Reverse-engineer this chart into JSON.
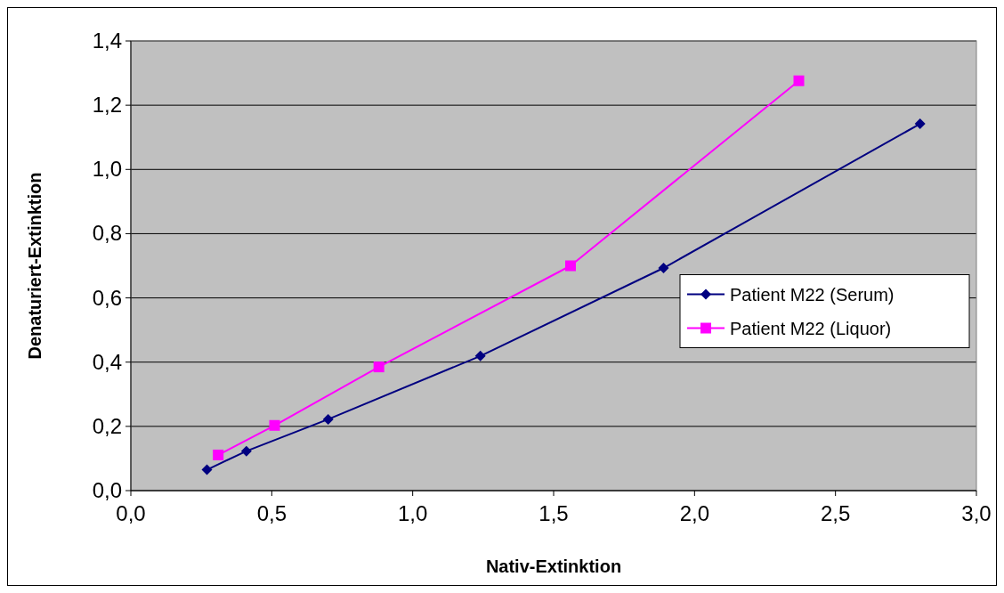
{
  "chart_data": {
    "type": "line",
    "xlabel": "Nativ-Extinktion",
    "ylabel": "Denaturiert-Extinktion",
    "xlim": [
      0,
      3
    ],
    "ylim": [
      0,
      1.4
    ],
    "xticks": [
      {
        "value": 0,
        "label": "0,0"
      },
      {
        "value": 0.5,
        "label": "0,5"
      },
      {
        "value": 1,
        "label": "1,0"
      },
      {
        "value": 1.5,
        "label": "1,5"
      },
      {
        "value": 2,
        "label": "2,0"
      },
      {
        "value": 2.5,
        "label": "2,5"
      },
      {
        "value": 3,
        "label": "3,0"
      }
    ],
    "yticks": [
      {
        "value": 0,
        "label": "0,0"
      },
      {
        "value": 0.2,
        "label": "0,2"
      },
      {
        "value": 0.4,
        "label": "0,4"
      },
      {
        "value": 0.6,
        "label": "0,6"
      },
      {
        "value": 0.8,
        "label": "0,8"
      },
      {
        "value": 1,
        "label": "1,0"
      },
      {
        "value": 1.2,
        "label": "1,2"
      },
      {
        "value": 1.4,
        "label": "1,4"
      }
    ],
    "grid": "y",
    "legend": "right",
    "series": [
      {
        "name": "Patient M22 (Serum)",
        "color": "#000080",
        "marker": "diamond",
        "x": [
          0.27,
          0.41,
          0.7,
          1.24,
          1.89,
          2.8
        ],
        "values": [
          0.065,
          0.123,
          0.222,
          0.419,
          0.693,
          1.142
        ]
      },
      {
        "name": "Patient M22 (Liquor)",
        "color": "#ff00ff",
        "marker": "square",
        "x": [
          0.31,
          0.51,
          0.88,
          1.56,
          2.37
        ],
        "values": [
          0.111,
          0.203,
          0.385,
          0.7,
          1.276
        ]
      }
    ]
  }
}
